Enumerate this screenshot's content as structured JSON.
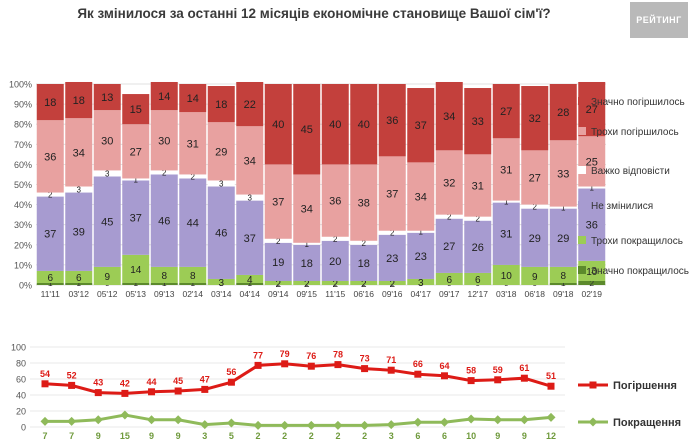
{
  "title": "Як змінилося за останні 12 місяців економічне становище Вашої сім'ї?",
  "logo_text": "РЕЙТИНГ",
  "chart_data": [
    {
      "type": "bar",
      "stacked": true,
      "categories": [
        "11'11",
        "03'12",
        "05'12",
        "05'13",
        "09'13",
        "02'14",
        "03'14",
        "04'14",
        "09'14",
        "09'15",
        "11'15",
        "06'16",
        "09'16",
        "04'17",
        "09'17",
        "12'17",
        "03'18",
        "06'18",
        "09'18",
        "02'19"
      ],
      "yticks": [
        "0%",
        "10%",
        "20%",
        "30%",
        "40%",
        "50%",
        "60%",
        "70%",
        "80%",
        "90%",
        "100%"
      ],
      "ylim": [
        0,
        100
      ],
      "legend_position": "right",
      "series": [
        {
          "name": "Значно покращилось",
          "color": "#5c8a2c",
          "values": [
            1,
            1,
            0,
            1,
            1,
            1,
            0,
            1,
            0,
            0,
            0,
            0,
            0,
            0,
            0,
            0,
            0,
            0,
            1,
            2
          ]
        },
        {
          "name": "Трохи покращилось",
          "color": "#9ccc55",
          "values": [
            6,
            6,
            9,
            14,
            8,
            8,
            3,
            4,
            2,
            2,
            2,
            2,
            2,
            3,
            6,
            6,
            10,
            9,
            8,
            10
          ]
        },
        {
          "name": "Не змінилися",
          "color": "#a79bd0",
          "values": [
            37,
            39,
            45,
            37,
            46,
            44,
            46,
            37,
            19,
            18,
            20,
            18,
            23,
            23,
            27,
            26,
            31,
            29,
            29,
            36
          ]
        },
        {
          "name": "Важко відповісти",
          "color": "#ffffff",
          "values": [
            2,
            3,
            3,
            1,
            2,
            2,
            3,
            3,
            2,
            1,
            2,
            2,
            2,
            1,
            2,
            2,
            1,
            2,
            1,
            1
          ]
        },
        {
          "name": "Трохи погіршилось",
          "color": "#e8a1a0",
          "values": [
            36,
            34,
            30,
            27,
            30,
            31,
            29,
            34,
            37,
            34,
            36,
            38,
            37,
            34,
            32,
            31,
            31,
            27,
            33,
            25
          ]
        },
        {
          "name": "Значно погіршилось",
          "color": "#c3403c",
          "values": [
            18,
            18,
            13,
            15,
            14,
            14,
            18,
            22,
            40,
            45,
            40,
            40,
            36,
            37,
            34,
            33,
            27,
            32,
            28,
            27
          ]
        }
      ]
    },
    {
      "type": "line",
      "categories": [
        "11'11",
        "03'12",
        "05'12",
        "05'13",
        "09'13",
        "02'14",
        "03'14",
        "04'14",
        "09'14",
        "09'15",
        "11'15",
        "06'16",
        "09'16",
        "04'17",
        "09'17",
        "12'17",
        "03'18",
        "06'18",
        "09'18",
        "02'19"
      ],
      "yticks": [
        "0",
        "20",
        "40",
        "60",
        "80",
        "100"
      ],
      "ylim": [
        0,
        100
      ],
      "legend_position": "right",
      "series": [
        {
          "name": "Погіршення",
          "color": "#dd1b16",
          "values": [
            54,
            52,
            43,
            42,
            44,
            45,
            47,
            56,
            77,
            79,
            76,
            78,
            73,
            71,
            66,
            64,
            58,
            59,
            61,
            51
          ]
        },
        {
          "name": "Покращення",
          "color": "#8fba5a",
          "values": [
            7,
            7,
            9,
            15,
            9,
            9,
            3,
            5,
            2,
            2,
            2,
            2,
            2,
            3,
            6,
            6,
            10,
            9,
            9,
            12
          ]
        }
      ]
    }
  ]
}
